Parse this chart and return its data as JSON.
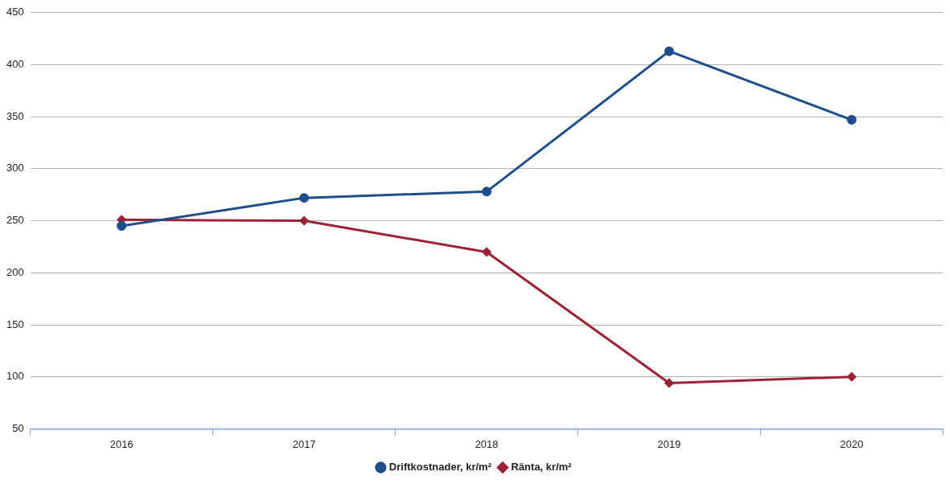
{
  "chart_data": {
    "type": "line",
    "categories": [
      "2016",
      "2017",
      "2018",
      "2019",
      "2020"
    ],
    "series": [
      {
        "name": "Driftkostnader, kr/m²",
        "color": "#1f4e8c",
        "marker": "circle",
        "values": [
          245,
          272,
          278,
          413,
          347
        ]
      },
      {
        "name": "Ränta, kr/m²",
        "color": "#9b2335",
        "marker": "diamond",
        "values": [
          251,
          250,
          220,
          94,
          100
        ]
      }
    ],
    "ylim": [
      50,
      450
    ],
    "yticks": [
      50,
      100,
      150,
      200,
      250,
      300,
      350,
      400,
      450
    ],
    "grid": "y",
    "legend": "bottom",
    "line_style": "solid"
  }
}
